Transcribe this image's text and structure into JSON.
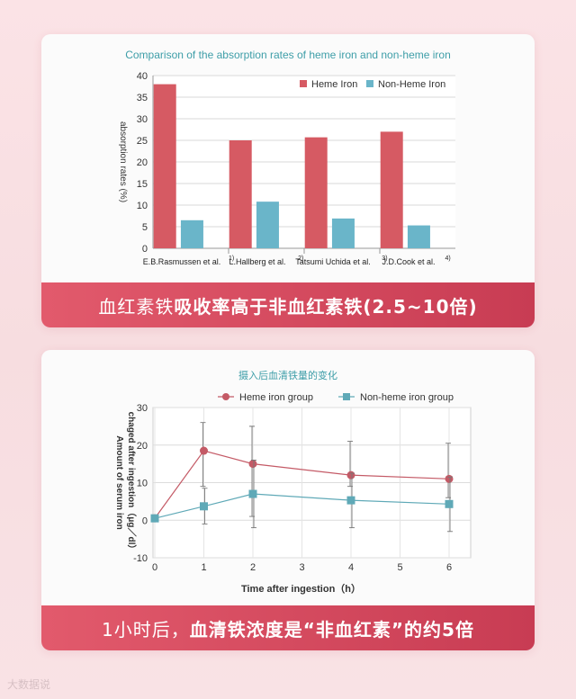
{
  "chart_data": [
    {
      "type": "bar",
      "title": "Comparison of the absorption rates of heme iron and non-heme iron",
      "ylabel": "absorption rates (%)",
      "ylim": [
        0,
        40
      ],
      "yticks": [
        0,
        5,
        10,
        15,
        20,
        25,
        30,
        35,
        40
      ],
      "categories": [
        "E.B.Rasmussen et al.",
        "L.Hallberg et al.",
        "Tatsumi Uchida et al.",
        "J.D.Cook et al."
      ],
      "category_refs": [
        "1)",
        "2)",
        "3)",
        "4)"
      ],
      "series": [
        {
          "name": "Heme Iron",
          "color": "#d65a63",
          "values": [
            38,
            25,
            25.7,
            27
          ]
        },
        {
          "name": "Non-Heme Iron",
          "color": "#6ab5c9",
          "values": [
            6.5,
            10.8,
            6.9,
            5.3
          ]
        }
      ],
      "legend": "top-right",
      "grid": true
    },
    {
      "type": "line",
      "title": "摄入后血清铁量的变化",
      "xlabel": "Time after ingestion（h）",
      "ylabel": "Amount of serum iron chaged after ingestion（μg／dl）",
      "xlim": [
        0,
        6
      ],
      "ylim": [
        -10,
        30
      ],
      "xticks": [
        0,
        1,
        2,
        3,
        4,
        5,
        6
      ],
      "yticks": [
        -10,
        0,
        10,
        20,
        30
      ],
      "series": [
        {
          "name": "Heme iron group",
          "color": "#c45a66",
          "marker": "circle",
          "x": [
            0,
            1,
            2,
            4,
            6
          ],
          "y": [
            0.5,
            18.5,
            15,
            12,
            11
          ],
          "err_low": [
            0,
            9,
            1,
            9,
            6
          ],
          "err_high": [
            0,
            26,
            25,
            21,
            20.5
          ]
        },
        {
          "name": "Non-heme iron group",
          "color": "#5fa9b7",
          "marker": "square",
          "x": [
            0,
            1,
            2,
            4,
            6
          ],
          "y": [
            0.5,
            3.7,
            7,
            5.3,
            4.3
          ],
          "err_low": [
            0,
            -1,
            -2,
            -2,
            -3
          ],
          "err_high": [
            0,
            8.5,
            16,
            12.5,
            11.5
          ]
        }
      ],
      "legend": "top",
      "grid": true
    }
  ],
  "banner1": {
    "p1": "血红素铁",
    "p2": "吸收率高于非血红素铁(2.5~10倍)"
  },
  "banner2": {
    "p1": "1小时后，",
    "p2": "血清铁浓度是“非血红素”的约5倍"
  },
  "watermark": "大数据说"
}
